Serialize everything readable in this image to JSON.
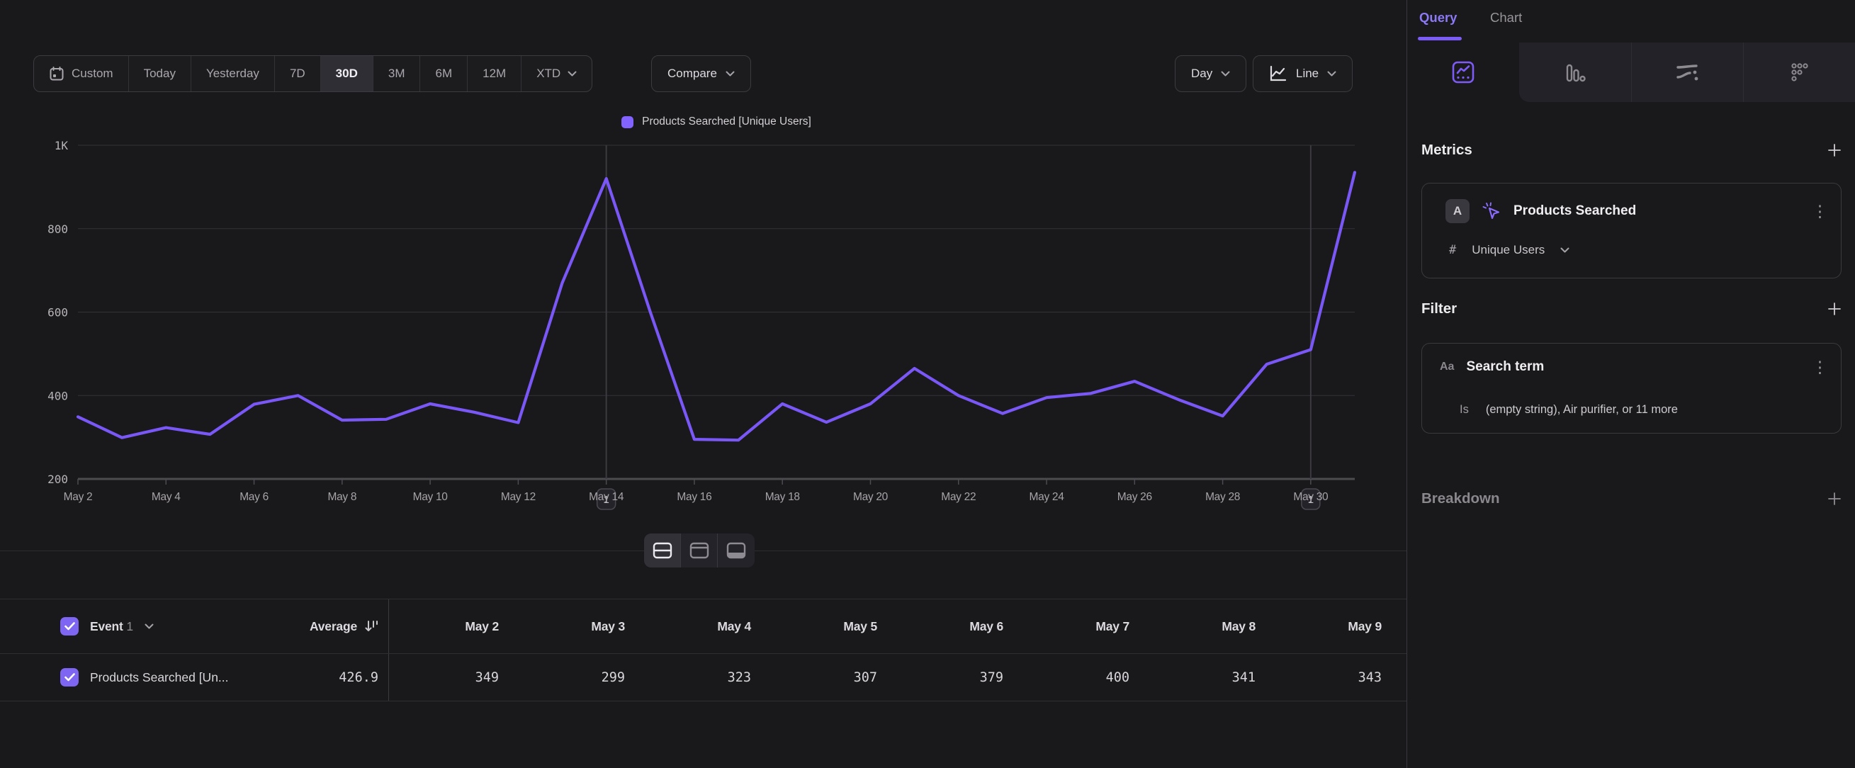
{
  "toolbar": {
    "ranges": [
      "Custom",
      "Today",
      "Yesterday",
      "7D",
      "30D",
      "3M",
      "6M",
      "12M",
      "XTD"
    ],
    "selected_range": "30D",
    "compare": "Compare",
    "granularity": "Day",
    "chart_type": "Line"
  },
  "legend": {
    "label": "Products Searched [Unique Users]",
    "color": "#8363ff"
  },
  "chart_data": {
    "type": "line",
    "title": "",
    "x": [
      "May 2",
      "May 3",
      "May 4",
      "May 5",
      "May 6",
      "May 7",
      "May 8",
      "May 9",
      "May 10",
      "May 11",
      "May 12",
      "May 13",
      "May 14",
      "May 15",
      "May 16",
      "May 17",
      "May 18",
      "May 19",
      "May 20",
      "May 21",
      "May 22",
      "May 23",
      "May 24",
      "May 25",
      "May 26",
      "May 27",
      "May 28",
      "May 29",
      "May 30",
      "May 31"
    ],
    "series": [
      {
        "name": "Products Searched [Unique Users]",
        "color": "#7a58f7",
        "values": [
          349,
          299,
          323,
          307,
          379,
          400,
          341,
          343,
          380,
          360,
          335,
          670,
          920,
          600,
          295,
          293,
          380,
          336,
          380,
          465,
          400,
          357,
          395,
          405,
          434,
          390,
          351,
          475,
          510,
          935
        ]
      }
    ],
    "ylim": [
      200,
      1000
    ],
    "y_axis": [
      {
        "value": 1000,
        "label": "1K"
      },
      {
        "value": 800,
        "label": "800"
      },
      {
        "value": 600,
        "label": "600"
      },
      {
        "value": 400,
        "label": "400"
      },
      {
        "value": 200,
        "label": "200"
      }
    ],
    "x_tick_every": 2,
    "grid": true,
    "legend_position": "top-center",
    "annotations": [
      {
        "index": 12,
        "x": "May 14",
        "label": "1"
      },
      {
        "index": 28,
        "x": "May 30",
        "label": "1"
      }
    ]
  },
  "layout_toggle": {
    "options": [
      "split-view",
      "chart-only",
      "table-only"
    ],
    "selected": "split-view"
  },
  "table": {
    "event_label": "Event",
    "event_count": "1",
    "average_label": "Average",
    "columns": [
      "May 2",
      "May 3",
      "May 4",
      "May 5",
      "May 6",
      "May 7",
      "May 8",
      "May 9"
    ],
    "rows": [
      {
        "checked": true,
        "name": "Products Searched [Un...",
        "average": "426.9",
        "values": [
          "349",
          "299",
          "323",
          "307",
          "379",
          "400",
          "341",
          "343"
        ]
      }
    ]
  },
  "panel": {
    "tabs": [
      {
        "label": "Query",
        "active": true
      },
      {
        "label": "Chart",
        "active": false
      }
    ],
    "view_tabs": [
      "insights",
      "bar",
      "flows",
      "funnel"
    ],
    "metrics_title": "Metrics",
    "metric": {
      "letter": "A",
      "name": "Products Searched",
      "agg_symbol": "#",
      "aggregation": "Unique Users"
    },
    "filter_title": "Filter",
    "filter": {
      "type_icon": "Aa",
      "property": "Search term",
      "operator": "Is",
      "value": "(empty string), Air purifier, or 11 more"
    },
    "breakdown_title": "Breakdown"
  },
  "colors": {
    "accent": "#7a58f7",
    "checkbox": "#7e66f2",
    "selected_segment_bg": "#2f2e34"
  }
}
